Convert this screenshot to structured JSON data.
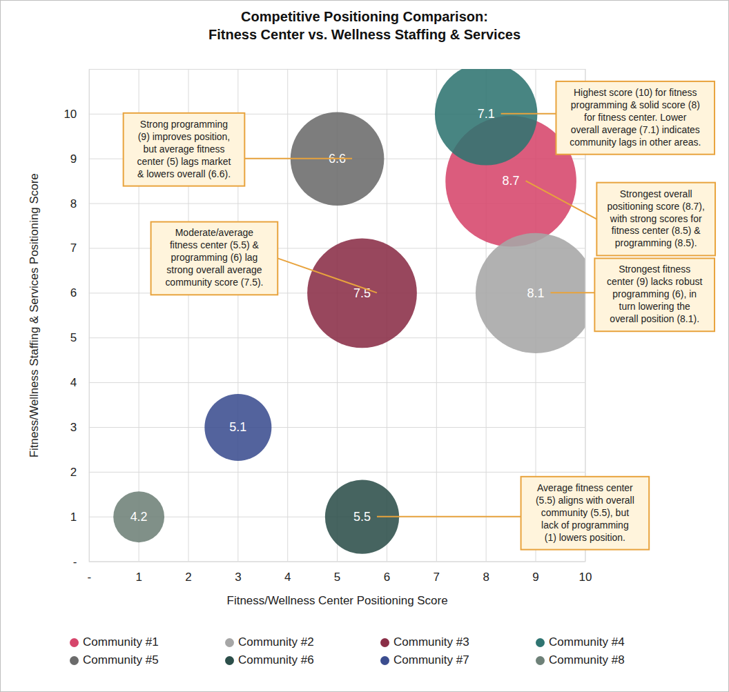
{
  "chart_data": {
    "type": "scatter",
    "title": "Competitive Positioning Comparison: Fitness Center vs. Wellness Staffing & Services",
    "x_label": "Fitness/Wellness Center Positioning Score",
    "y_label": "Fitness/Wellness Staffing & Services Positioning Score",
    "xlim": [
      0,
      10
    ],
    "ylim": [
      0,
      11
    ],
    "xticks": [
      {
        "value": 0,
        "label": "-"
      },
      1,
      2,
      3,
      4,
      5,
      6,
      7,
      8,
      9,
      10
    ],
    "yticks": [
      {
        "value": 0,
        "label": "-"
      },
      1,
      2,
      3,
      4,
      5,
      6,
      7,
      8,
      9,
      10
    ],
    "grid": true,
    "legend": "bottom",
    "data_labels": true,
    "marker": "circle",
    "series": [
      {
        "name": "Community #1",
        "color": "#D6456B",
        "x": [
          8.5
        ],
        "y": [
          8.5
        ],
        "sizes": [
          8.7
        ]
      },
      {
        "name": "Community #2",
        "color": "#A6A6A6",
        "x": [
          9
        ],
        "y": [
          6
        ],
        "sizes": [
          8.1
        ]
      },
      {
        "name": "Community #3",
        "color": "#8A2E47",
        "x": [
          5.5
        ],
        "y": [
          6
        ],
        "sizes": [
          7.5
        ]
      },
      {
        "name": "Community #4",
        "color": "#2F7471",
        "x": [
          8
        ],
        "y": [
          10
        ],
        "sizes": [
          7.1
        ]
      },
      {
        "name": "Community #5",
        "color": "#6B6B6B",
        "x": [
          5
        ],
        "y": [
          9
        ],
        "sizes": [
          6.6
        ]
      },
      {
        "name": "Community #6",
        "color": "#2C4F4A",
        "x": [
          5.5
        ],
        "y": [
          1
        ],
        "sizes": [
          5.5
        ]
      },
      {
        "name": "Community #7",
        "color": "#3B4D8F",
        "x": [
          3
        ],
        "y": [
          3
        ],
        "sizes": [
          5.1
        ]
      },
      {
        "name": "Community #8",
        "color": "#6E8178",
        "x": [
          1
        ],
        "y": [
          1
        ],
        "sizes": [
          4.2
        ]
      }
    ],
    "annotations": [
      {
        "lines": [
          "Strong programming",
          "(9) improves position,",
          "but average fitness",
          "center (5) lags market",
          "& lowers overall (6.6)."
        ]
      },
      {
        "lines": [
          "Highest score (10) for fitness",
          "programming & solid score (8)",
          "for fitness center. Lower",
          "overall average (7.1) indicates",
          "community lags in other areas."
        ]
      },
      {
        "lines": [
          "Strongest overall",
          "positioning score (8.7),",
          "with strong scores for",
          "fitness center (8.5) &",
          "programming (8.5)."
        ]
      },
      {
        "lines": [
          "Moderate/average",
          "fitness center (5.5) &",
          "programming (6) lag",
          "strong overall average",
          "community score (7.5)."
        ]
      },
      {
        "lines": [
          "Strongest fitness",
          "center (9) lacks robust",
          "programming (6), in",
          "turn lowering the",
          "overall position (8.1)."
        ]
      },
      {
        "lines": [
          "Average fitness center",
          "(5.5) aligns with overall",
          "community (5.5), but",
          "lack of programming",
          "(1) lowers position."
        ]
      }
    ]
  }
}
